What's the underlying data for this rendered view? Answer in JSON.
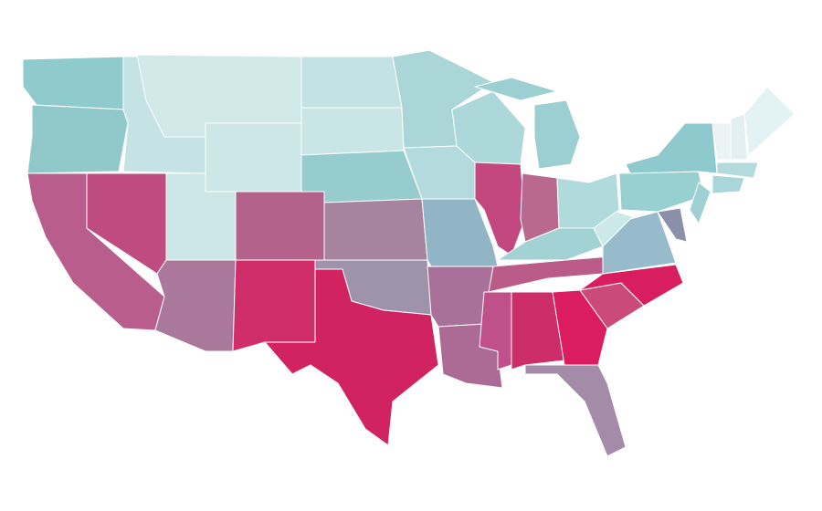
{
  "map": {
    "regions": [
      {
        "color": "#8fcacc"
      },
      {
        "color": "#91c9cb"
      },
      {
        "color": "#b85d8c"
      },
      {
        "color": "#bf4c80"
      },
      {
        "color": "#c5e2e4"
      },
      {
        "color": "#d2e9ea"
      },
      {
        "color": "#cde6e7"
      },
      {
        "color": "#cce5e6"
      },
      {
        "color": "#a9789a"
      },
      {
        "color": "#b4628c"
      },
      {
        "color": "#d02e6b"
      },
      {
        "color": "#c2e2e3"
      },
      {
        "color": "#cae5e6"
      },
      {
        "color": "#96ccce"
      },
      {
        "color": "#a6839f"
      },
      {
        "color": "#9e93aa"
      },
      {
        "color": "#d22361"
      },
      {
        "color": "#aad6d8"
      },
      {
        "color": "#b3dbdd"
      },
      {
        "color": "#91b5c4"
      },
      {
        "color": "#a97199"
      },
      {
        "color": "#ab6b95"
      },
      {
        "color": "#add8da"
      },
      {
        "color": "#c44880"
      },
      {
        "color": "#9ccfd1"
      },
      {
        "color": "#9ccfd1"
      },
      {
        "color": "#b9688e"
      },
      {
        "color": "#b1dadc"
      },
      {
        "color": "#a2d2d4"
      },
      {
        "color": "#ba5b88"
      },
      {
        "color": "#c0508a"
      },
      {
        "color": "#cd2e6a"
      },
      {
        "color": "#db1c5e"
      },
      {
        "color": "#a48ba8"
      },
      {
        "color": "#ca4a78"
      },
      {
        "color": "#d81e5e"
      },
      {
        "color": "#96bccb"
      },
      {
        "color": "#cde8e9"
      },
      {
        "color": "#98cfd1"
      },
      {
        "color": "#8ecacd"
      },
      {
        "color": "#8b8fa8"
      },
      {
        "color": "#9fd0d3"
      },
      {
        "color": "#ecf3f4"
      },
      {
        "color": "#e2f0f1"
      },
      {
        "color": "#e3f2f2"
      },
      {
        "color": "#b3dbdd"
      },
      {
        "color": "#a9d6d8"
      }
    ]
  }
}
